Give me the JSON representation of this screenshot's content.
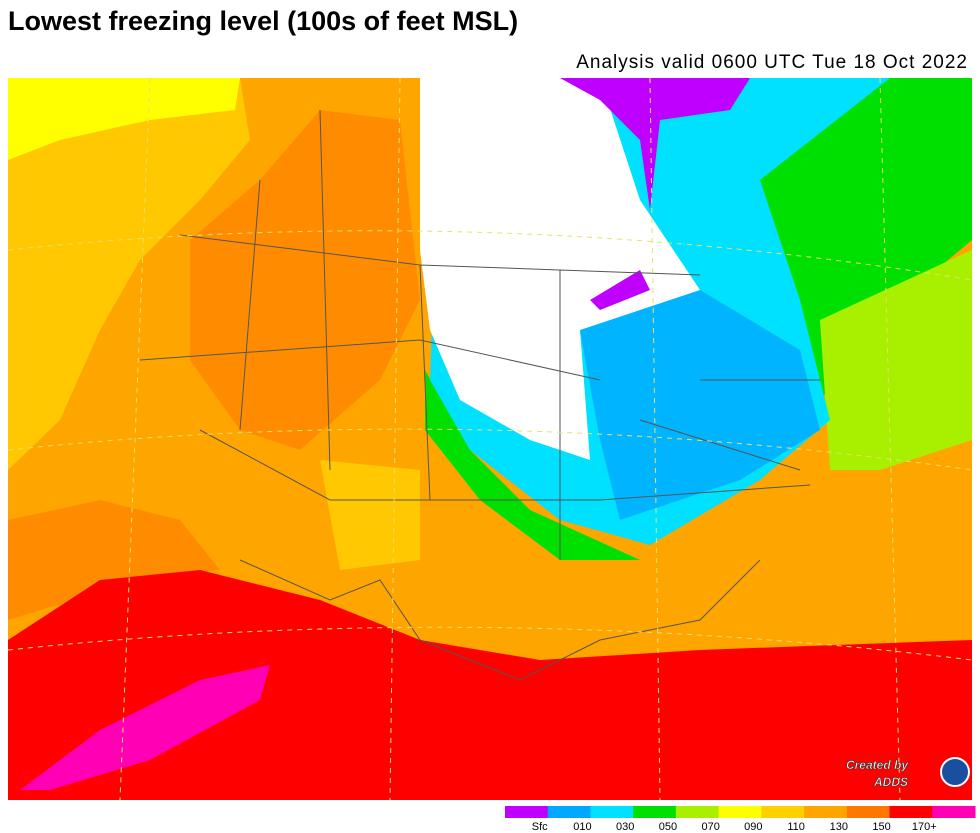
{
  "header": {
    "title": "Lowest freezing level (100s of feet MSL)",
    "subtitle": "Analysis valid 0600 UTC Tue 18 Oct 2022"
  },
  "legend": {
    "labels": [
      "Sfc",
      "010",
      "030",
      "050",
      "070",
      "090",
      "110",
      "130",
      "150",
      "170+"
    ],
    "colors": [
      "#c000ff",
      "#00a8ff",
      "#00e0ff",
      "#00e000",
      "#a8f000",
      "#ffff00",
      "#ffd000",
      "#ffa500",
      "#ff7800",
      "#ff0000",
      "#ff00b4"
    ]
  },
  "credit": {
    "line1": "Created by",
    "line2": "ADDS"
  }
}
